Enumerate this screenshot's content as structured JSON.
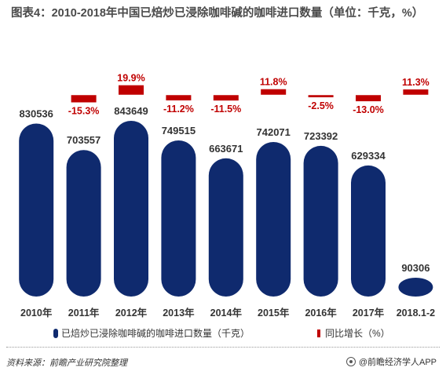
{
  "title": "图表4：2010-2018年中国已焙炒已浸除咖啡碱的咖啡进口数量（单位：千克，%）",
  "legend": {
    "bar_label": "已焙炒已浸除咖啡碱的咖啡进口数量（千克）",
    "change_label": "同比增长（%）"
  },
  "source": "资料来源：前瞻产业研究院整理",
  "brand": "@前瞻经济学人APP",
  "colors": {
    "bar": "#0f2a6e",
    "change": "#c00000",
    "change_label": "#c00000"
  },
  "chart_data": {
    "type": "bar",
    "categories": [
      "2010年",
      "2011年",
      "2012年",
      "2013年",
      "2014年",
      "2015年",
      "2016年",
      "2017年",
      "2018.1-2"
    ],
    "series": [
      {
        "name": "已焙炒已浸除咖啡碱的咖啡进口数量（千克）",
        "values": [
          830536,
          703557,
          843649,
          749515,
          663671,
          742071,
          723392,
          629334,
          90306
        ],
        "labels": [
          "830536",
          "703557",
          "843649",
          "749515",
          "663671",
          "742071",
          "723392",
          "629334",
          "90306"
        ]
      },
      {
        "name": "同比增长（%）",
        "values": [
          null,
          -15.3,
          19.9,
          -11.2,
          -11.5,
          11.8,
          -2.5,
          -13.0,
          11.3
        ],
        "labels": [
          "",
          "-15.3%",
          "19.9%",
          "-11.2%",
          "-11.5%",
          "11.8%",
          "-2.5%",
          "-13.0%",
          "11.3%"
        ]
      }
    ]
  }
}
